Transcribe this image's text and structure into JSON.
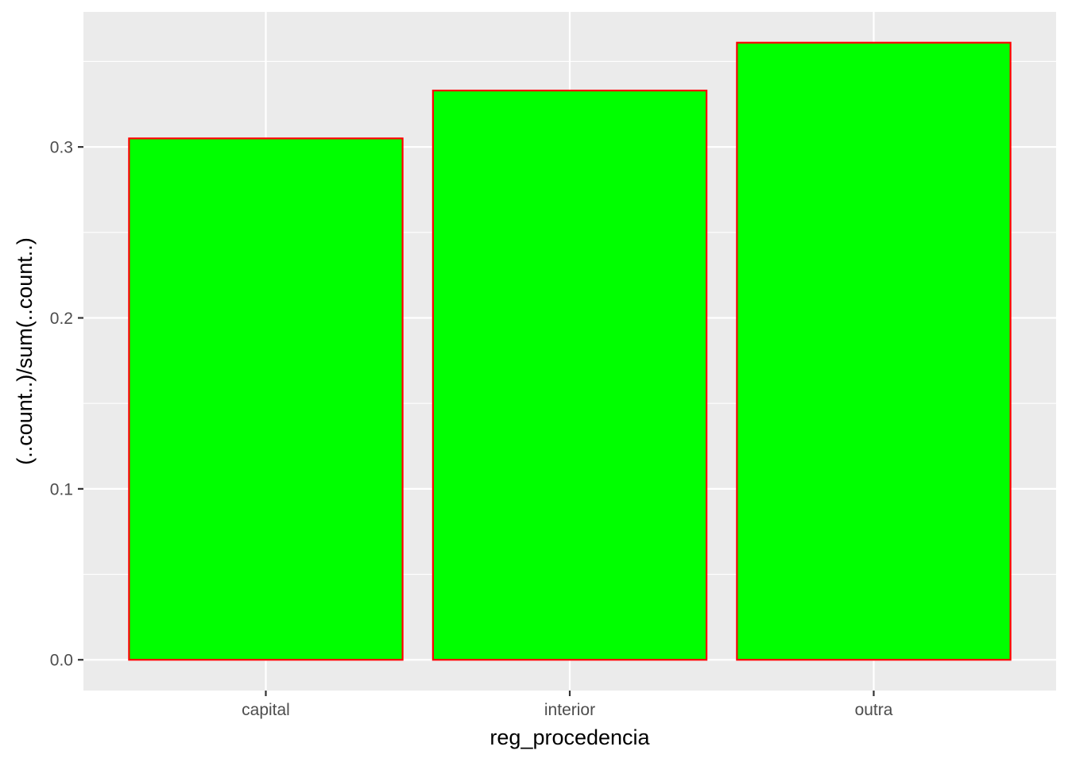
{
  "chart_data": {
    "type": "bar",
    "categories": [
      "capital",
      "interior",
      "outra"
    ],
    "values": [
      0.305,
      0.333,
      0.361
    ],
    "xlabel": "reg_procedencia",
    "ylabel": "(..count..)/sum(..count..)",
    "ylim": [
      -0.018,
      0.379
    ],
    "yticks": [
      0.0,
      0.1,
      0.2,
      0.3
    ],
    "ytick_labels": [
      "0.0",
      "0.1",
      "0.2",
      "0.3"
    ],
    "grid": true,
    "colors": {
      "bar_fill": "#00ff00",
      "bar_stroke": "#ff0000",
      "panel_background": "#ebebeb",
      "grid_line": "#ffffff",
      "tick_mark": "#333333",
      "tick_label": "#4d4d4d",
      "axis_title": "#000000"
    }
  }
}
